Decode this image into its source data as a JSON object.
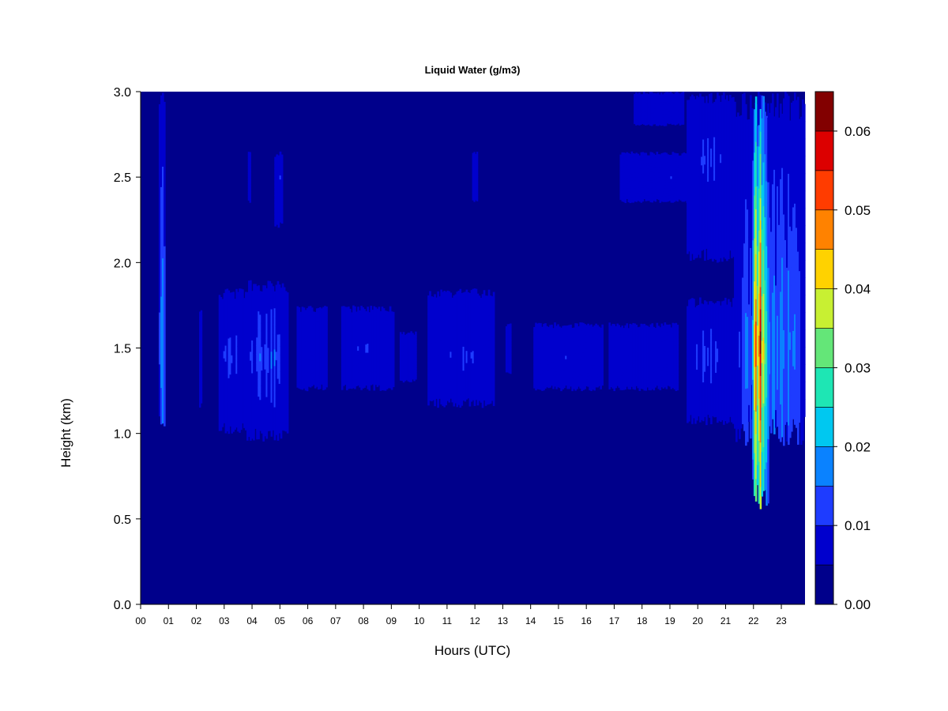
{
  "chart_data": {
    "type": "heatmap",
    "title": "Liquid Water (g/m3)",
    "xlabel": "Hours (UTC)",
    "ylabel": "Height (km)",
    "xlim": [
      0,
      23.85
    ],
    "ylim": [
      0,
      3.0
    ],
    "x_ticks": [
      "00",
      "01",
      "02",
      "03",
      "04",
      "05",
      "06",
      "07",
      "08",
      "09",
      "10",
      "11",
      "12",
      "13",
      "14",
      "15",
      "16",
      "17",
      "18",
      "19",
      "20",
      "21",
      "22",
      "23"
    ],
    "y_ticks": [
      "0.0",
      "0.5",
      "1.0",
      "1.5",
      "2.0",
      "2.5",
      "3.0"
    ],
    "colorbar": {
      "levels": [
        0.0,
        0.005,
        0.01,
        0.015,
        0.02,
        0.025,
        0.03,
        0.035,
        0.04,
        0.045,
        0.05,
        0.055,
        0.06,
        0.065
      ],
      "tick_labels": [
        "0.00",
        "0.01",
        "0.02",
        "0.03",
        "0.04",
        "0.05",
        "0.06"
      ],
      "tick_values": [
        0.0,
        0.01,
        0.02,
        0.03,
        0.04,
        0.05,
        0.06
      ],
      "colors": [
        "#00008B",
        "#0000CD",
        "#1E3CFF",
        "#0A82FF",
        "#00C8F0",
        "#1EE6B4",
        "#64E678",
        "#C8F032",
        "#FFD200",
        "#FF8200",
        "#FF3C00",
        "#DC0000",
        "#820000"
      ]
    },
    "features": [
      {
        "x": [
          0.65,
          0.88
        ],
        "y": [
          0.95,
          3.0
        ],
        "peak": 0.022,
        "peak_y": 1.55
      },
      {
        "x": [
          2.1,
          2.2
        ],
        "y": [
          1.15,
          1.75
        ],
        "peak": 0.009,
        "peak_y": 1.5
      },
      {
        "x": [
          2.8,
          3.8
        ],
        "y": [
          1.0,
          1.85
        ],
        "peak": 0.013,
        "peak_y": 1.45
      },
      {
        "x": [
          3.8,
          5.3
        ],
        "y": [
          0.95,
          1.9
        ],
        "peak": 0.017,
        "peak_y": 1.45
      },
      {
        "x": [
          3.85,
          3.95
        ],
        "y": [
          2.35,
          2.65
        ],
        "peak": 0.008,
        "peak_y": 2.5
      },
      {
        "x": [
          4.8,
          5.1
        ],
        "y": [
          2.2,
          2.65
        ],
        "peak": 0.011,
        "peak_y": 2.5
      },
      {
        "x": [
          5.6,
          6.7
        ],
        "y": [
          1.25,
          1.75
        ],
        "peak": 0.009,
        "peak_y": 1.5
      },
      {
        "x": [
          7.2,
          9.1
        ],
        "y": [
          1.25,
          1.75
        ],
        "peak": 0.011,
        "peak_y": 1.5
      },
      {
        "x": [
          9.3,
          9.9
        ],
        "y": [
          1.3,
          1.6
        ],
        "peak": 0.008,
        "peak_y": 1.45
      },
      {
        "x": [
          10.3,
          12.7
        ],
        "y": [
          1.15,
          1.85
        ],
        "peak": 0.012,
        "peak_y": 1.45
      },
      {
        "x": [
          11.9,
          12.1
        ],
        "y": [
          2.35,
          2.65
        ],
        "peak": 0.008,
        "peak_y": 2.5
      },
      {
        "x": [
          13.1,
          13.3
        ],
        "y": [
          1.35,
          1.65
        ],
        "peak": 0.008,
        "peak_y": 1.5
      },
      {
        "x": [
          14.1,
          16.6
        ],
        "y": [
          1.25,
          1.65
        ],
        "peak": 0.011,
        "peak_y": 1.45
      },
      {
        "x": [
          16.8,
          19.3
        ],
        "y": [
          1.25,
          1.65
        ],
        "peak": 0.011,
        "peak_y": 1.45
      },
      {
        "x": [
          17.2,
          21.0
        ],
        "y": [
          2.35,
          2.65
        ],
        "peak": 0.011,
        "peak_y": 2.5
      },
      {
        "x": [
          17.7,
          19.5
        ],
        "y": [
          2.8,
          3.0
        ],
        "peak": 0.008,
        "peak_y": 2.9
      },
      {
        "x": [
          19.6,
          21.3
        ],
        "y": [
          2.0,
          3.0
        ],
        "peak": 0.012,
        "peak_y": 2.6
      },
      {
        "x": [
          19.6,
          21.3
        ],
        "y": [
          1.05,
          1.8
        ],
        "peak": 0.014,
        "peak_y": 1.45
      },
      {
        "x": [
          21.3,
          23.85
        ],
        "y": [
          0.93,
          3.0
        ],
        "peak": 0.022,
        "peak_y": 1.5
      },
      {
        "x": [
          21.95,
          22.55
        ],
        "y": [
          0.55,
          3.0
        ],
        "peak": 0.062,
        "peak_y": 1.5
      }
    ]
  }
}
